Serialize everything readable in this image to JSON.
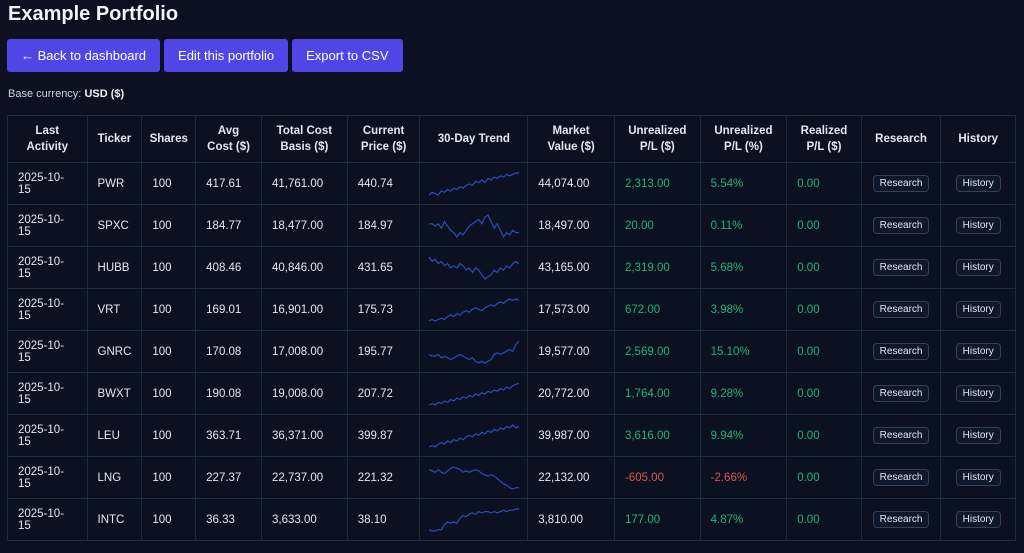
{
  "title": "Example Portfolio",
  "buttons": {
    "back": "← Back to dashboard",
    "edit": "Edit this portfolio",
    "export": "Export to CSV"
  },
  "base_currency": {
    "label": "Base currency:",
    "value": "USD ($)"
  },
  "colors": {
    "accent": "#4f46e5",
    "positive": "#22b573",
    "negative": "#e05252",
    "sparkline": "#2a4db8"
  },
  "columns": [
    "Last Activity",
    "Ticker",
    "Shares",
    "Avg Cost ($)",
    "Total Cost Basis ($)",
    "Current Price ($)",
    "30-Day Trend",
    "Market Value ($)",
    "Unrealized P/L ($)",
    "Unrealized P/L (%)",
    "Realized P/L ($)",
    "Research",
    "History"
  ],
  "rows": [
    {
      "date": "2025-10-15",
      "ticker": "PWR",
      "shares": "100",
      "avg": "417.61",
      "basis": "41,761.00",
      "price": "440.74",
      "mv": "44,074.00",
      "upl": "2,313.00",
      "uplp": "5.54%",
      "rpl": "0.00",
      "sign": "pos",
      "trend": [
        2,
        4,
        3,
        2,
        5,
        4,
        6,
        5,
        7,
        6,
        8,
        7,
        9,
        10,
        9,
        12,
        11,
        13,
        11,
        14,
        13,
        15,
        14,
        16,
        15,
        17,
        16,
        17,
        18,
        18
      ]
    },
    {
      "date": "2025-10-15",
      "ticker": "SPXC",
      "shares": "100",
      "avg": "184.77",
      "basis": "18,477.00",
      "price": "184.97",
      "mv": "18,497.00",
      "upl": "20.00",
      "uplp": "0.11%",
      "rpl": "0.00",
      "sign": "pos",
      "trend": [
        12,
        12,
        11,
        12,
        10,
        13,
        11,
        9,
        8,
        6,
        8,
        7,
        9,
        11,
        12,
        13,
        14,
        12,
        15,
        16,
        13,
        10,
        12,
        9,
        6,
        8,
        7,
        9,
        8,
        8
      ]
    },
    {
      "date": "2025-10-15",
      "ticker": "HUBB",
      "shares": "100",
      "avg": "408.46",
      "basis": "40,846.00",
      "price": "431.65",
      "mv": "43,165.00",
      "upl": "2,319.00",
      "uplp": "5.68%",
      "rpl": "0.00",
      "sign": "pos",
      "trend": [
        15,
        13,
        14,
        12,
        13,
        11,
        12,
        10,
        11,
        10,
        12,
        11,
        9,
        10,
        8,
        10,
        9,
        7,
        5,
        6,
        7,
        9,
        8,
        10,
        9,
        11,
        10,
        12,
        13,
        12
      ]
    },
    {
      "date": "2025-10-15",
      "ticker": "VRT",
      "shares": "100",
      "avg": "169.01",
      "basis": "16,901.00",
      "price": "175.73",
      "mv": "17,573.00",
      "upl": "672.00",
      "uplp": "3.98%",
      "rpl": "0.00",
      "sign": "pos",
      "trend": [
        2,
        3,
        2,
        3,
        4,
        3,
        5,
        6,
        5,
        7,
        6,
        8,
        9,
        8,
        10,
        11,
        10,
        9,
        11,
        12,
        13,
        12,
        14,
        15,
        14,
        16,
        17,
        16,
        17,
        16
      ]
    },
    {
      "date": "2025-10-15",
      "ticker": "GNRC",
      "shares": "100",
      "avg": "170.08",
      "basis": "17,008.00",
      "price": "195.77",
      "mv": "19,577.00",
      "upl": "2,569.00",
      "uplp": "15.10%",
      "rpl": "0.00",
      "sign": "pos",
      "trend": [
        10,
        9,
        9,
        10,
        8,
        9,
        8,
        7,
        8,
        9,
        10,
        9,
        8,
        7,
        8,
        6,
        5,
        6,
        5,
        6,
        7,
        10,
        11,
        10,
        11,
        12,
        13,
        12,
        16,
        18
      ]
    },
    {
      "date": "2025-10-15",
      "ticker": "BWXT",
      "shares": "100",
      "avg": "190.08",
      "basis": "19,008.00",
      "price": "207.72",
      "mv": "20,772.00",
      "upl": "1,764.00",
      "uplp": "9.28%",
      "rpl": "0.00",
      "sign": "pos",
      "trend": [
        2,
        3,
        2,
        4,
        3,
        5,
        4,
        6,
        5,
        7,
        6,
        8,
        7,
        9,
        8,
        10,
        9,
        11,
        10,
        12,
        11,
        13,
        12,
        14,
        13,
        15,
        14,
        16,
        17,
        18
      ]
    },
    {
      "date": "2025-10-15",
      "ticker": "LEU",
      "shares": "100",
      "avg": "363.71",
      "basis": "36,371.00",
      "price": "399.87",
      "mv": "39,987.00",
      "upl": "3,616.00",
      "uplp": "9.94%",
      "rpl": "0.00",
      "sign": "pos",
      "trend": [
        2,
        3,
        2,
        4,
        5,
        4,
        6,
        5,
        7,
        6,
        8,
        7,
        9,
        10,
        9,
        11,
        10,
        12,
        11,
        13,
        12,
        14,
        13,
        15,
        14,
        16,
        15,
        17,
        15,
        16
      ]
    },
    {
      "date": "2025-10-15",
      "ticker": "LNG",
      "shares": "100",
      "avg": "227.37",
      "basis": "22,737.00",
      "price": "221.32",
      "mv": "22,132.00",
      "upl": "-605.00",
      "uplp": "-2.66%",
      "rpl": "0.00",
      "sign": "neg",
      "trend": [
        15,
        14,
        13,
        15,
        13,
        12,
        14,
        16,
        17,
        16,
        15,
        13,
        14,
        13,
        14,
        15,
        14,
        12,
        11,
        10,
        11,
        10,
        8,
        6,
        4,
        3,
        1,
        0,
        1,
        1
      ]
    },
    {
      "date": "2025-10-15",
      "ticker": "INTC",
      "shares": "100",
      "avg": "36.33",
      "basis": "3,633.00",
      "price": "38.10",
      "mv": "3,810.00",
      "upl": "177.00",
      "uplp": "4.87%",
      "rpl": "0.00",
      "sign": "pos",
      "trend": [
        1,
        0,
        0,
        1,
        1,
        5,
        7,
        6,
        7,
        6,
        10,
        12,
        11,
        13,
        14,
        13,
        15,
        14,
        15,
        15,
        14,
        15,
        14,
        15,
        16,
        15,
        16,
        16,
        17,
        17
      ]
    }
  ],
  "row_buttons": {
    "research": "Research",
    "history": "History"
  }
}
